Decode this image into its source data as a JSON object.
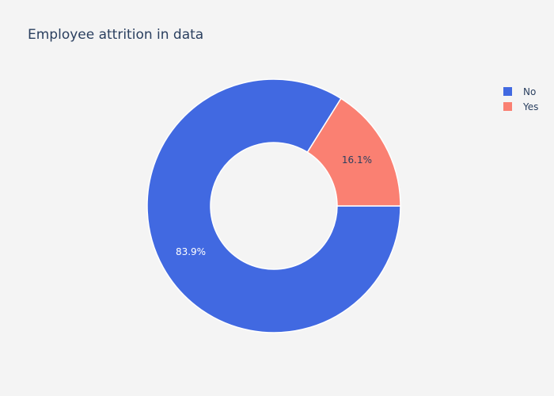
{
  "chart_data": {
    "type": "pie",
    "title": "Employee attrition in data",
    "hole": 0.5,
    "slices": [
      {
        "label": "No",
        "value": 83.9,
        "text": "83.9%",
        "color": "#4169e1",
        "text_color": "#ffffff"
      },
      {
        "label": "Yes",
        "value": 16.1,
        "text": "16.1%",
        "color": "#fa8072",
        "text_color": "#2a3f5f"
      }
    ],
    "legend": {
      "position": "top-right",
      "entries": [
        {
          "label": "No",
          "color": "#4169e1"
        },
        {
          "label": "Yes",
          "color": "#fa8072"
        }
      ]
    }
  }
}
